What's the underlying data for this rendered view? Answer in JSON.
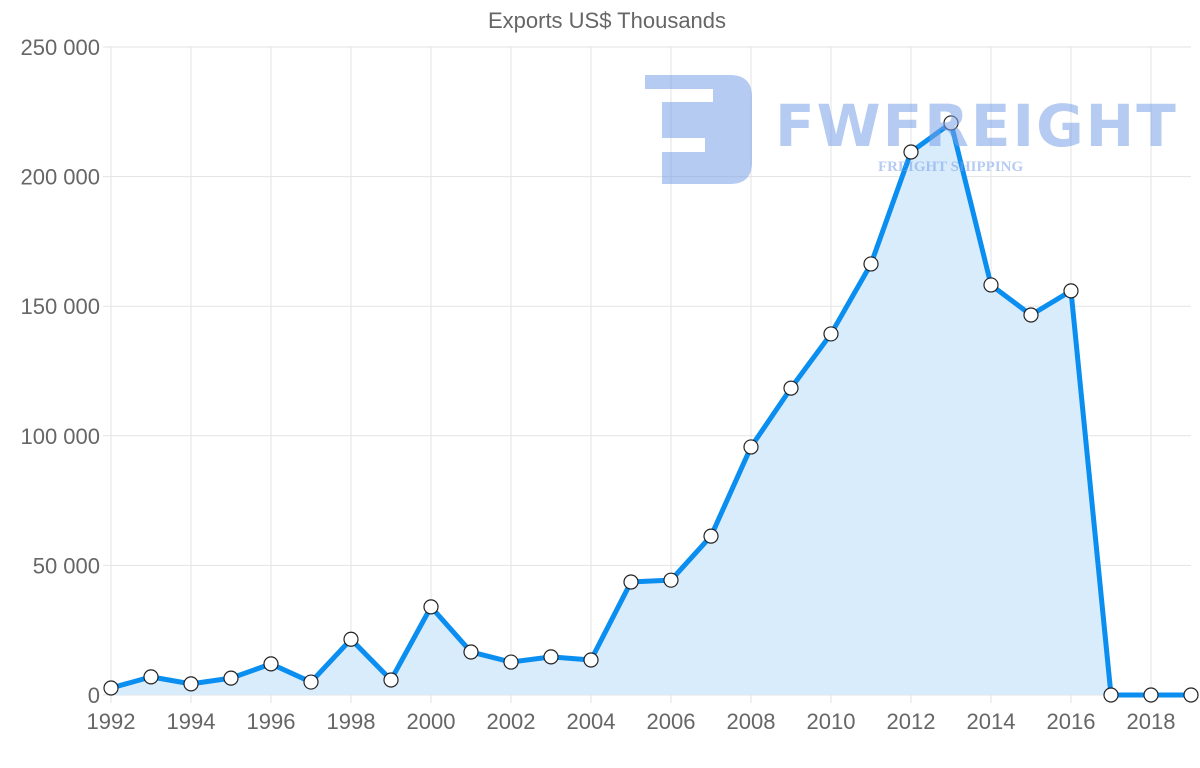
{
  "chart_data": {
    "type": "area",
    "title": "Exports US$ Thousands",
    "xlabel": "",
    "ylabel": "",
    "x": [
      1992,
      1993,
      1994,
      1995,
      1996,
      1997,
      1998,
      1999,
      2000,
      2001,
      2002,
      2003,
      2004,
      2005,
      2006,
      2007,
      2008,
      2009,
      2010,
      2011,
      2012,
      2013,
      2014,
      2015,
      2016,
      2017,
      2018,
      2019
    ],
    "series": [
      {
        "name": "Exports US$ Thousands",
        "values": [
          2700,
          7000,
          4300,
          6500,
          12000,
          5000,
          21500,
          5800,
          34000,
          16600,
          12700,
          14700,
          13500,
          43600,
          44300,
          61300,
          95700,
          118400,
          139300,
          166300,
          209500,
          220700,
          158200,
          146600,
          155900,
          0,
          0,
          0
        ],
        "line_color": "#0a8ef0",
        "fill_color": "#d7ebfc"
      }
    ],
    "ylim": [
      0,
      250000
    ],
    "yticks": [
      0,
      50000,
      100000,
      150000,
      200000,
      250000
    ],
    "ytick_labels": [
      "0",
      "50 000",
      "100 000",
      "150 000",
      "200 000",
      "250 000"
    ],
    "xtick_labels": [
      "1992",
      "1994",
      "1996",
      "1998",
      "2000",
      "2002",
      "2004",
      "2006",
      "2008",
      "2010",
      "2012",
      "2014",
      "2016",
      "2018"
    ],
    "grid": true,
    "legend": "none"
  },
  "watermark": {
    "brand": "FWFREIGHT",
    "tagline": "FREIGHT SHIPPING"
  }
}
